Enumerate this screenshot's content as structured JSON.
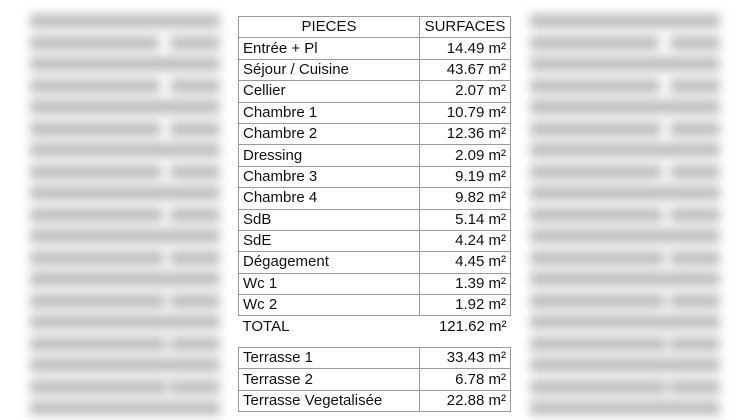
{
  "table": {
    "headers": [
      "PIECES",
      "SURFACES"
    ],
    "rows": [
      {
        "piece": "Entrée + Pl",
        "surface": "14.49 m²"
      },
      {
        "piece": "Séjour / Cuisine",
        "surface": "43.67 m²"
      },
      {
        "piece": "Cellier",
        "surface": "2.07 m²"
      },
      {
        "piece": "Chambre 1",
        "surface": "10.79 m²"
      },
      {
        "piece": "Chambre 2",
        "surface": "12.36 m²"
      },
      {
        "piece": "Dressing",
        "surface": "2.09 m²"
      },
      {
        "piece": "Chambre 3",
        "surface": "9.19 m²"
      },
      {
        "piece": "Chambre 4",
        "surface": "9.82 m²"
      },
      {
        "piece": "SdB",
        "surface": "5.14 m²"
      },
      {
        "piece": "SdE",
        "surface": "4.24 m²"
      },
      {
        "piece": "Dégagement",
        "surface": "4.45 m²"
      },
      {
        "piece": "Wc 1",
        "surface": "1.39 m²"
      },
      {
        "piece": "Wc 2",
        "surface": "1.92 m²"
      }
    ],
    "total": {
      "label": "TOTAL",
      "surface": "121.62 m²"
    }
  },
  "terraces": [
    {
      "piece": "Terrasse 1",
      "surface": "33.43 m²"
    },
    {
      "piece": "Terrasse 2",
      "surface": "6.78 m²"
    },
    {
      "piece": "Terrasse Vegetalisée",
      "surface": "22.88 m²"
    }
  ]
}
